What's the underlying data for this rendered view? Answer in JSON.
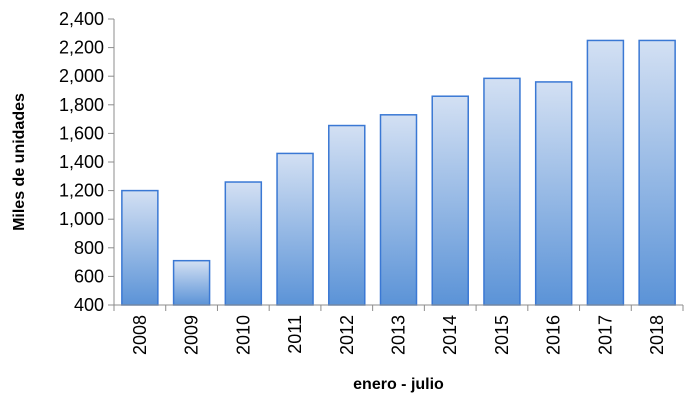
{
  "chart_data": {
    "type": "bar",
    "categories": [
      "2008",
      "2009",
      "2010",
      "2011",
      "2012",
      "2013",
      "2014",
      "2015",
      "2016",
      "2017",
      "2018"
    ],
    "values": [
      1200,
      710,
      1260,
      1460,
      1655,
      1730,
      1860,
      1985,
      1960,
      2250,
      2250
    ],
    "title": "",
    "xlabel": "enero - julio",
    "ylabel": "Miles de unidades",
    "ylim": [
      400,
      2400
    ],
    "yticks": [
      400,
      600,
      800,
      1000,
      1200,
      1400,
      1600,
      1800,
      2000,
      2200,
      2400
    ],
    "ytick_labels": [
      "400",
      "600",
      "800",
      "1,000",
      "1,200",
      "1,400",
      "1,600",
      "1,800",
      "2,000",
      "2,200",
      "2,400"
    ],
    "grid": false,
    "legend": "none",
    "colors": {
      "bar_top": "#d3e0f3",
      "bar_bottom": "#5b93d7",
      "bar_stroke": "#3a78d4",
      "axis": "#8c8c8c"
    }
  }
}
